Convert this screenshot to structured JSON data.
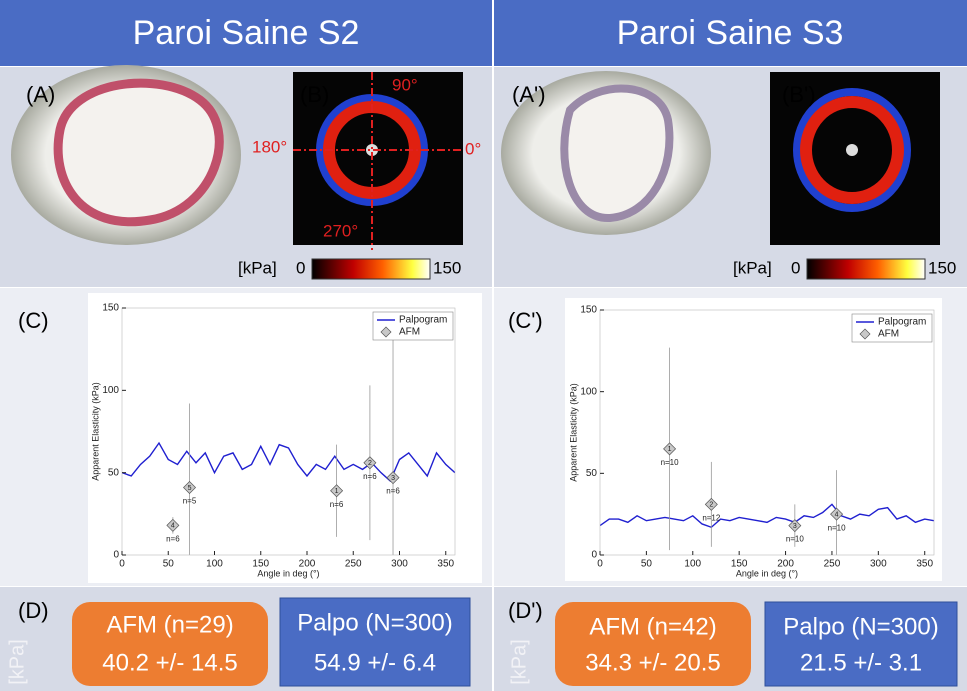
{
  "header": {
    "left": "Paroi Saine S2",
    "right": "Paroi Saine S3"
  },
  "panels": {
    "a": "(A)",
    "b": "(B)",
    "a2": "(A')",
    "b2": "(B')",
    "c": "(C)",
    "c2": "(C')",
    "d": "(D)",
    "d2": "(D')"
  },
  "angles": {
    "top": "90°",
    "left": "180°",
    "right": "0°",
    "bottom": "270°"
  },
  "colorbars": [
    {
      "unit": "[kPa]",
      "min": 0,
      "max": 150
    },
    {
      "unit": "[kPa]",
      "min": 0,
      "max": 150
    }
  ],
  "summary": {
    "unit": "[kPa]",
    "left": {
      "afm_title": "AFM (n=29)",
      "afm_value": "40.2 +/- 14.5",
      "palpo_title": "Palpo (N=300)",
      "palpo_value": "54.9 +/- 6.4"
    },
    "right": {
      "afm_title": "AFM (n=42)",
      "afm_value": "34.3 +/- 20.5",
      "palpo_title": "Palpo (N=300)",
      "palpo_value": "21.5 +/- 3.1"
    }
  },
  "chart_data": [
    {
      "type": "line",
      "xlabel": "Angle in deg (°)",
      "ylabel": "Apparent Elasticity (kPa)",
      "xlim": [
        0,
        360
      ],
      "xticks": [
        0,
        50,
        100,
        150,
        200,
        250,
        300,
        350
      ],
      "ylim": [
        0,
        150
      ],
      "yticks": [
        0,
        50,
        100,
        150
      ],
      "series": [
        {
          "name": "Palpogram",
          "color": "#2020d0",
          "x": [
            0,
            10,
            20,
            30,
            40,
            50,
            60,
            70,
            80,
            90,
            100,
            110,
            120,
            130,
            140,
            150,
            160,
            170,
            180,
            190,
            200,
            210,
            220,
            230,
            240,
            250,
            260,
            270,
            280,
            290,
            300,
            310,
            320,
            330,
            340,
            350,
            360
          ],
          "values": [
            50,
            48,
            55,
            60,
            68,
            58,
            55,
            63,
            56,
            62,
            50,
            60,
            62,
            52,
            55,
            66,
            55,
            67,
            65,
            55,
            48,
            55,
            52,
            60,
            52,
            55,
            52,
            56,
            50,
            45,
            58,
            62,
            55,
            48,
            62,
            55,
            50
          ]
        },
        {
          "name": "AFM",
          "color": "#c8c8c8",
          "x": [
            55,
            73,
            232,
            268,
            293
          ],
          "values": [
            18,
            41,
            39,
            56,
            47
          ],
          "errors": [
            5,
            51,
            28,
            47,
            100
          ],
          "point_labels": [
            4,
            5,
            1,
            2,
            3
          ],
          "annotations": [
            "n=6",
            "n=5",
            "n=6",
            "n=6",
            "n=6"
          ]
        }
      ]
    },
    {
      "type": "line",
      "xlabel": "Angle in deg (°)",
      "ylabel": "Apparent Elasticity (kPa)",
      "xlim": [
        0,
        360
      ],
      "xticks": [
        0,
        50,
        100,
        150,
        200,
        250,
        300,
        350
      ],
      "ylim": [
        0,
        150
      ],
      "yticks": [
        0,
        50,
        100,
        150
      ],
      "series": [
        {
          "name": "Palpogram",
          "color": "#2020d0",
          "x": [
            0,
            10,
            20,
            30,
            40,
            50,
            60,
            70,
            80,
            90,
            100,
            110,
            120,
            130,
            140,
            150,
            160,
            170,
            180,
            190,
            200,
            210,
            220,
            230,
            240,
            250,
            260,
            270,
            280,
            290,
            300,
            310,
            320,
            330,
            340,
            350,
            360
          ],
          "values": [
            18,
            22,
            22,
            20,
            24,
            21,
            22,
            23,
            22,
            21,
            24,
            19,
            17,
            22,
            21,
            23,
            22,
            21,
            20,
            23,
            22,
            20,
            24,
            23,
            26,
            31,
            24,
            22,
            25,
            24,
            28,
            29,
            22,
            24,
            20,
            22,
            21
          ]
        },
        {
          "name": "AFM",
          "color": "#c8c8c8",
          "x": [
            75,
            120,
            210,
            255
          ],
          "values": [
            65,
            31,
            18,
            25
          ],
          "errors": [
            62,
            26,
            13,
            27
          ],
          "point_labels": [
            1,
            2,
            3,
            4
          ],
          "annotations": [
            "n=10",
            "n=12",
            "n=10",
            "n=10"
          ]
        }
      ]
    }
  ]
}
